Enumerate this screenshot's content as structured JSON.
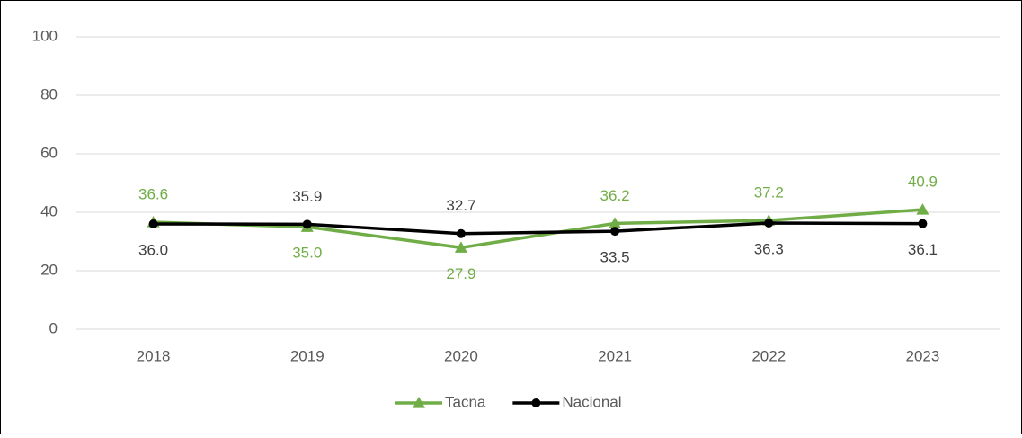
{
  "chart_data": {
    "type": "line",
    "categories": [
      "2018",
      "2019",
      "2020",
      "2021",
      "2022",
      "2023"
    ],
    "series": [
      {
        "name": "Tacna",
        "color": "#70ad47",
        "values": [
          36.6,
          35.0,
          27.9,
          36.2,
          37.2,
          40.9
        ],
        "value_labels": [
          "36.6",
          "35.0",
          "27.9",
          "36.2",
          "37.2",
          "40.9"
        ]
      },
      {
        "name": "Nacional",
        "color": "#000000",
        "values": [
          36.0,
          35.9,
          32.7,
          33.5,
          36.3,
          36.1
        ],
        "value_labels": [
          "36.0",
          "35.9",
          "32.7",
          "33.5",
          "36.3",
          "36.1"
        ]
      }
    ],
    "ylim": [
      0,
      100
    ],
    "yticks": [
      0,
      20,
      40,
      60,
      80,
      100
    ],
    "grid": true,
    "legend": "bottom"
  }
}
